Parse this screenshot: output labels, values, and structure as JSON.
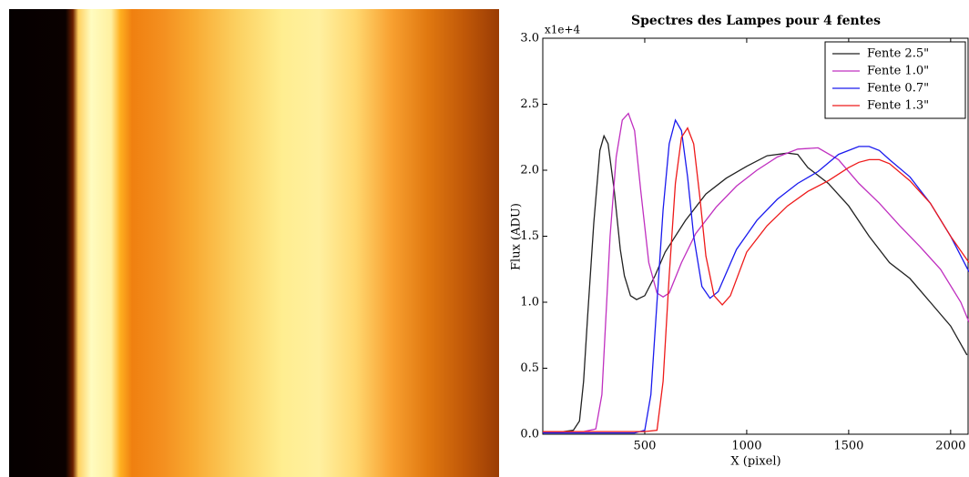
{
  "chart_data": {
    "type": "line",
    "title": "Spectres des Lampes pour 4 fentes",
    "x_label": "X (pixel)",
    "y_label": "Flux (ADU)",
    "y_offset_label": "x1e+4",
    "xlim": [
      0,
      2090
    ],
    "ylim": [
      0,
      3
    ],
    "xticks": [
      500,
      1000,
      1500,
      2000
    ],
    "yticks": [
      {
        "value": 0,
        "label": "0.0"
      },
      0.5,
      {
        "value": 1,
        "label": "1.0"
      },
      1.5,
      {
        "value": 2,
        "label": "2.0"
      },
      2.5,
      {
        "value": 3,
        "label": "3.0"
      }
    ],
    "legend_position": "upper right",
    "series": [
      {
        "name": "Fente 2.5\"",
        "color": "#222222",
        "x": [
          0,
          100,
          150,
          180,
          200,
          220,
          250,
          280,
          300,
          320,
          350,
          380,
          400,
          430,
          460,
          500,
          550,
          600,
          700,
          800,
          900,
          1000,
          1100,
          1200,
          1250,
          1300,
          1400,
          1500,
          1600,
          1700,
          1800,
          1900,
          2000,
          2080
        ],
        "values": [
          0.02,
          0.02,
          0.03,
          0.1,
          0.4,
          0.9,
          1.6,
          2.15,
          2.26,
          2.2,
          1.85,
          1.4,
          1.2,
          1.05,
          1.02,
          1.05,
          1.2,
          1.38,
          1.62,
          1.82,
          1.94,
          2.03,
          2.11,
          2.13,
          2.12,
          2.02,
          1.9,
          1.73,
          1.5,
          1.3,
          1.18,
          1.0,
          0.82,
          0.6
        ]
      },
      {
        "name": "Fente 1.0\"",
        "color": "#c030c0",
        "x": [
          0,
          200,
          260,
          290,
          310,
          330,
          360,
          390,
          420,
          450,
          480,
          520,
          560,
          590,
          620,
          680,
          750,
          850,
          950,
          1050,
          1150,
          1250,
          1350,
          1450,
          1550,
          1650,
          1750,
          1850,
          1950,
          2050,
          2090
        ],
        "values": [
          0.02,
          0.02,
          0.04,
          0.3,
          0.9,
          1.5,
          2.1,
          2.38,
          2.43,
          2.3,
          1.85,
          1.3,
          1.07,
          1.04,
          1.07,
          1.3,
          1.52,
          1.72,
          1.88,
          2.0,
          2.1,
          2.16,
          2.17,
          2.08,
          1.9,
          1.75,
          1.58,
          1.42,
          1.25,
          1.0,
          0.85
        ]
      },
      {
        "name": "Fente 0.7\"",
        "color": "#1a1aee",
        "x": [
          0,
          450,
          500,
          530,
          560,
          590,
          620,
          650,
          680,
          710,
          740,
          780,
          820,
          860,
          950,
          1050,
          1150,
          1250,
          1350,
          1450,
          1550,
          1600,
          1650,
          1700,
          1800,
          1900,
          2000,
          2090
        ],
        "values": [
          0.01,
          0.01,
          0.03,
          0.3,
          1.0,
          1.7,
          2.2,
          2.38,
          2.3,
          1.95,
          1.5,
          1.12,
          1.03,
          1.08,
          1.4,
          1.62,
          1.78,
          1.9,
          1.99,
          2.12,
          2.18,
          2.18,
          2.15,
          2.08,
          1.95,
          1.75,
          1.5,
          1.23
        ]
      },
      {
        "name": "Fente 1.3\"",
        "color": "#ee1a1a",
        "x": [
          0,
          500,
          560,
          590,
          620,
          650,
          680,
          710,
          740,
          770,
          800,
          840,
          880,
          920,
          1000,
          1100,
          1200,
          1300,
          1400,
          1500,
          1550,
          1600,
          1650,
          1700,
          1800,
          1900,
          2000,
          2090
        ],
        "values": [
          0.02,
          0.02,
          0.03,
          0.4,
          1.2,
          1.9,
          2.25,
          2.32,
          2.2,
          1.8,
          1.35,
          1.05,
          0.98,
          1.05,
          1.38,
          1.58,
          1.73,
          1.84,
          1.92,
          2.02,
          2.06,
          2.08,
          2.08,
          2.05,
          1.92,
          1.75,
          1.5,
          1.3
        ]
      }
    ]
  }
}
